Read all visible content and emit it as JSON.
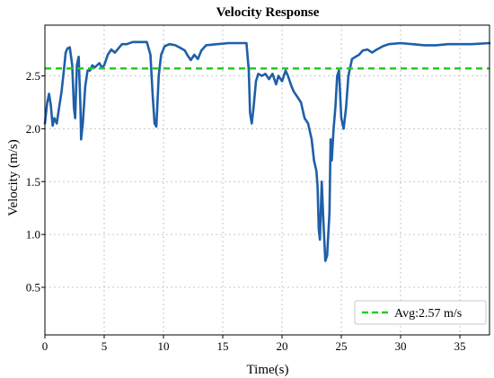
{
  "chart_data": {
    "type": "line",
    "title": "Velocity Response",
    "xlabel": "Time(s)",
    "ylabel": "Velocity (m/s)",
    "xlim": [
      0,
      37.5
    ],
    "ylim": [
      0.05,
      2.98
    ],
    "x_ticks": [
      0,
      5,
      10,
      15,
      20,
      25,
      30,
      35
    ],
    "y_ticks": [
      0.5,
      1.0,
      1.5,
      2.0,
      2.5
    ],
    "y_tick_labels": [
      "0.5",
      "1.0",
      "1.5",
      "2.0",
      "2.5"
    ],
    "grid": true,
    "legend": {
      "placement": "bottom-right"
    },
    "series": [
      {
        "color": "#1f5fa8",
        "points": [
          [
            0,
            2.05
          ],
          [
            0.2,
            2.25
          ],
          [
            0.35,
            2.33
          ],
          [
            0.5,
            2.22
          ],
          [
            0.65,
            2.03
          ],
          [
            0.8,
            2.1
          ],
          [
            1.0,
            2.05
          ],
          [
            1.2,
            2.2
          ],
          [
            1.4,
            2.35
          ],
          [
            1.6,
            2.55
          ],
          [
            1.75,
            2.72
          ],
          [
            1.9,
            2.76
          ],
          [
            2.1,
            2.77
          ],
          [
            2.3,
            2.6
          ],
          [
            2.45,
            2.2
          ],
          [
            2.55,
            2.1
          ],
          [
            2.7,
            2.6
          ],
          [
            2.85,
            2.68
          ],
          [
            3.0,
            2.2
          ],
          [
            3.05,
            1.9
          ],
          [
            3.2,
            2.05
          ],
          [
            3.4,
            2.4
          ],
          [
            3.6,
            2.55
          ],
          [
            3.8,
            2.55
          ],
          [
            4.0,
            2.6
          ],
          [
            4.2,
            2.58
          ],
          [
            4.4,
            2.6
          ],
          [
            4.6,
            2.62
          ],
          [
            4.8,
            2.58
          ],
          [
            5.0,
            2.6
          ],
          [
            5.3,
            2.7
          ],
          [
            5.6,
            2.75
          ],
          [
            5.9,
            2.72
          ],
          [
            6.2,
            2.76
          ],
          [
            6.5,
            2.8
          ],
          [
            6.9,
            2.8
          ],
          [
            7.4,
            2.82
          ],
          [
            8.0,
            2.82
          ],
          [
            8.6,
            2.82
          ],
          [
            8.9,
            2.7
          ],
          [
            9.1,
            2.3
          ],
          [
            9.25,
            2.05
          ],
          [
            9.4,
            2.02
          ],
          [
            9.6,
            2.5
          ],
          [
            9.8,
            2.7
          ],
          [
            10.1,
            2.78
          ],
          [
            10.5,
            2.8
          ],
          [
            11.0,
            2.79
          ],
          [
            11.5,
            2.76
          ],
          [
            11.8,
            2.74
          ],
          [
            12.0,
            2.7
          ],
          [
            12.3,
            2.65
          ],
          [
            12.6,
            2.7
          ],
          [
            12.9,
            2.66
          ],
          [
            13.2,
            2.74
          ],
          [
            13.6,
            2.79
          ],
          [
            14.5,
            2.8
          ],
          [
            15.5,
            2.81
          ],
          [
            16.5,
            2.81
          ],
          [
            17.0,
            2.81
          ],
          [
            17.2,
            2.55
          ],
          [
            17.3,
            2.15
          ],
          [
            17.45,
            2.05
          ],
          [
            17.6,
            2.2
          ],
          [
            17.8,
            2.45
          ],
          [
            18.0,
            2.52
          ],
          [
            18.3,
            2.5
          ],
          [
            18.6,
            2.52
          ],
          [
            18.9,
            2.47
          ],
          [
            19.2,
            2.52
          ],
          [
            19.5,
            2.42
          ],
          [
            19.7,
            2.5
          ],
          [
            20.0,
            2.45
          ],
          [
            20.3,
            2.55
          ],
          [
            20.5,
            2.5
          ],
          [
            20.8,
            2.4
          ],
          [
            21.0,
            2.35
          ],
          [
            21.3,
            2.3
          ],
          [
            21.6,
            2.25
          ],
          [
            21.9,
            2.1
          ],
          [
            22.2,
            2.05
          ],
          [
            22.5,
            1.9
          ],
          [
            22.7,
            1.7
          ],
          [
            22.9,
            1.6
          ],
          [
            23.0,
            1.45
          ],
          [
            23.1,
            1.05
          ],
          [
            23.2,
            0.95
          ],
          [
            23.35,
            1.5
          ],
          [
            23.5,
            1.1
          ],
          [
            23.65,
            0.75
          ],
          [
            23.8,
            0.8
          ],
          [
            24.0,
            1.2
          ],
          [
            24.1,
            1.9
          ],
          [
            24.2,
            1.7
          ],
          [
            24.35,
            2.0
          ],
          [
            24.5,
            2.2
          ],
          [
            24.65,
            2.5
          ],
          [
            24.8,
            2.55
          ],
          [
            25.0,
            2.1
          ],
          [
            25.2,
            2.0
          ],
          [
            25.4,
            2.2
          ],
          [
            25.6,
            2.5
          ],
          [
            25.9,
            2.66
          ],
          [
            26.2,
            2.68
          ],
          [
            26.5,
            2.7
          ],
          [
            26.8,
            2.74
          ],
          [
            27.2,
            2.75
          ],
          [
            27.6,
            2.72
          ],
          [
            28.0,
            2.75
          ],
          [
            28.5,
            2.78
          ],
          [
            29.0,
            2.8
          ],
          [
            30.0,
            2.81
          ],
          [
            31.0,
            2.8
          ],
          [
            32.0,
            2.79
          ],
          [
            33.0,
            2.79
          ],
          [
            34.0,
            2.8
          ],
          [
            35.0,
            2.8
          ],
          [
            36.0,
            2.8
          ],
          [
            37.5,
            2.81
          ]
        ]
      },
      {
        "name": "Avg:2.57 m/s",
        "color": "#22cc22",
        "dashed": true,
        "points": [
          [
            0,
            2.57
          ],
          [
            37.5,
            2.57
          ]
        ]
      }
    ]
  }
}
